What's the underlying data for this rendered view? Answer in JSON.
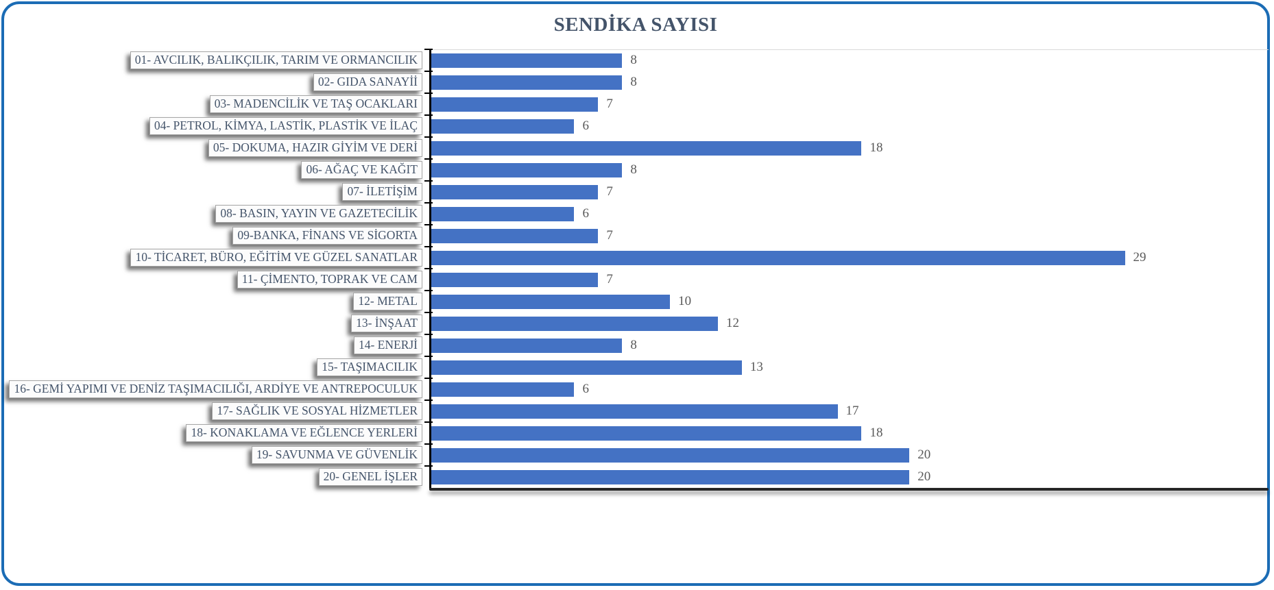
{
  "title": "SENDİKA SAYISI",
  "frame": {
    "border_color": "#1b6cb5",
    "background": "#ffffff"
  },
  "chart_data": {
    "type": "bar",
    "orientation": "horizontal",
    "title": "SENDİKA SAYISI",
    "categories": [
      "01- AVCILIK, BALIKÇILIK, TARIM VE ORMANCILIK",
      "02- GIDA SANAYİİ",
      "03- MADENCİLİK VE TAŞ OCAKLARI",
      "04- PETROL, KİMYA, LASTİK, PLASTİK VE İLAÇ",
      "05- DOKUMA, HAZIR GİYİM VE DERİ",
      "06- AĞAÇ VE KAĞIT",
      "07- İLETİŞİM",
      "08- BASIN, YAYIN VE GAZETECİLİK",
      "09-BANKA, FİNANS VE SİGORTA",
      "10- TİCARET, BÜRO, EĞİTİM VE GÜZEL SANATLAR",
      "11- ÇİMENTO, TOPRAK VE CAM",
      "12- METAL",
      "13- İNŞAAT",
      "14- ENERJİ",
      "15- TAŞIMACILIK",
      "16- GEMİ YAPIMI VE DENİZ TAŞIMACILIĞI, ARDİYE VE ANTREPOCULUK",
      "17- SAĞLIK VE SOSYAL HİZMETLER",
      "18- KONAKLAMA VE EĞLENCE YERLERİ",
      "19- SAVUNMA VE GÜVENLİK",
      "20- GENEL İŞLER"
    ],
    "values": [
      8,
      8,
      7,
      6,
      18,
      8,
      7,
      6,
      7,
      29,
      7,
      10,
      12,
      8,
      13,
      6,
      17,
      18,
      20,
      20
    ],
    "xlabel": "",
    "ylabel": "",
    "xlim": [
      0,
      35
    ],
    "grid": "off",
    "legend": "none",
    "data_labels": "outside-end",
    "bar_color": "#4472c4",
    "value_label_color": "#595959",
    "category_label_color": "#44546a",
    "title_color": "#44546a"
  }
}
